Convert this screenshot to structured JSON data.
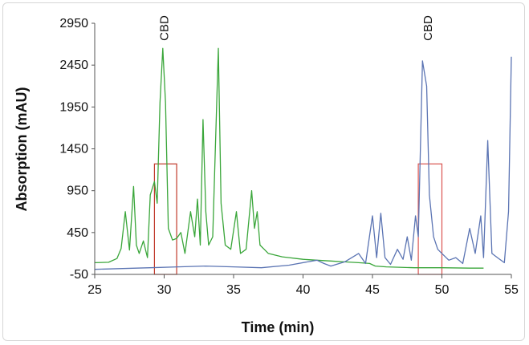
{
  "chart_data": {
    "type": "line",
    "xlabel": "Time (min)",
    "ylabel": "Absorption (mAU)",
    "xlim": [
      25,
      55
    ],
    "ylim": [
      -50,
      2950
    ],
    "x_ticks": [
      25,
      30,
      35,
      40,
      45,
      50,
      55
    ],
    "y_ticks": [
      -50,
      450,
      950,
      1450,
      1950,
      2450,
      2950
    ],
    "grid": false,
    "annotations": [
      {
        "text": "CBD",
        "x": 30.0
      },
      {
        "text": "CBD",
        "x": 49.0
      }
    ],
    "highlight_boxes": [
      {
        "x": [
          29.3,
          30.9
        ],
        "y": [
          -50,
          1270
        ],
        "color": "#c0392b"
      },
      {
        "x": [
          48.3,
          50.0
        ],
        "y": [
          -50,
          1270
        ],
        "color": "#d9534f"
      }
    ],
    "series": [
      {
        "color": "#3aa63a",
        "x": [
          25,
          26,
          26.6,
          26.9,
          27.2,
          27.5,
          27.8,
          28.0,
          28.2,
          28.5,
          28.8,
          29.0,
          29.3,
          29.5,
          29.7,
          29.9,
          30.1,
          30.3,
          30.6,
          30.9,
          31.2,
          31.5,
          31.9,
          32.2,
          32.4,
          32.6,
          32.8,
          33.0,
          33.2,
          33.5,
          33.9,
          34.1,
          34.4,
          34.8,
          35.2,
          35.5,
          35.9,
          36.3,
          36.5,
          36.7,
          36.9,
          37.2,
          37.5,
          38.0,
          38.5,
          39.0,
          39.5,
          40.0,
          41.0,
          42.0,
          43.0,
          44.0,
          44.8,
          45.2,
          46.0,
          48.0,
          50.0,
          52.0,
          53.0
        ],
        "values": [
          90,
          95,
          140,
          260,
          700,
          240,
          1000,
          300,
          200,
          350,
          150,
          900,
          1060,
          800,
          2000,
          2650,
          2000,
          500,
          360,
          380,
          450,
          200,
          700,
          400,
          850,
          300,
          1800,
          700,
          300,
          400,
          2650,
          800,
          300,
          250,
          700,
          200,
          250,
          950,
          500,
          700,
          300,
          250,
          200,
          180,
          160,
          150,
          140,
          130,
          120,
          110,
          100,
          90,
          80,
          50,
          40,
          30,
          30,
          25,
          25
        ]
      },
      {
        "color": "#5b74b3",
        "x": [
          25,
          27,
          29,
          31,
          33,
          35,
          37,
          39,
          41,
          41.5,
          42,
          43,
          44.0,
          44.5,
          45.0,
          45.3,
          45.6,
          45.9,
          46.3,
          46.8,
          47.2,
          47.5,
          47.8,
          48.1,
          48.3,
          48.6,
          48.9,
          49.1,
          49.4,
          49.7,
          50.0,
          50.5,
          51.0,
          51.5,
          52.0,
          52.4,
          52.8,
          53.0,
          53.3,
          53.6,
          54.0,
          54.5,
          54.8,
          55.0
        ],
        "values": [
          10,
          20,
          30,
          40,
          50,
          40,
          30,
          60,
          120,
          80,
          50,
          100,
          200,
          80,
          650,
          150,
          680,
          150,
          70,
          250,
          130,
          400,
          120,
          650,
          400,
          2500,
          2200,
          900,
          400,
          250,
          200,
          120,
          150,
          80,
          500,
          200,
          650,
          150,
          1550,
          200,
          150,
          90,
          700,
          2550
        ]
      }
    ]
  }
}
